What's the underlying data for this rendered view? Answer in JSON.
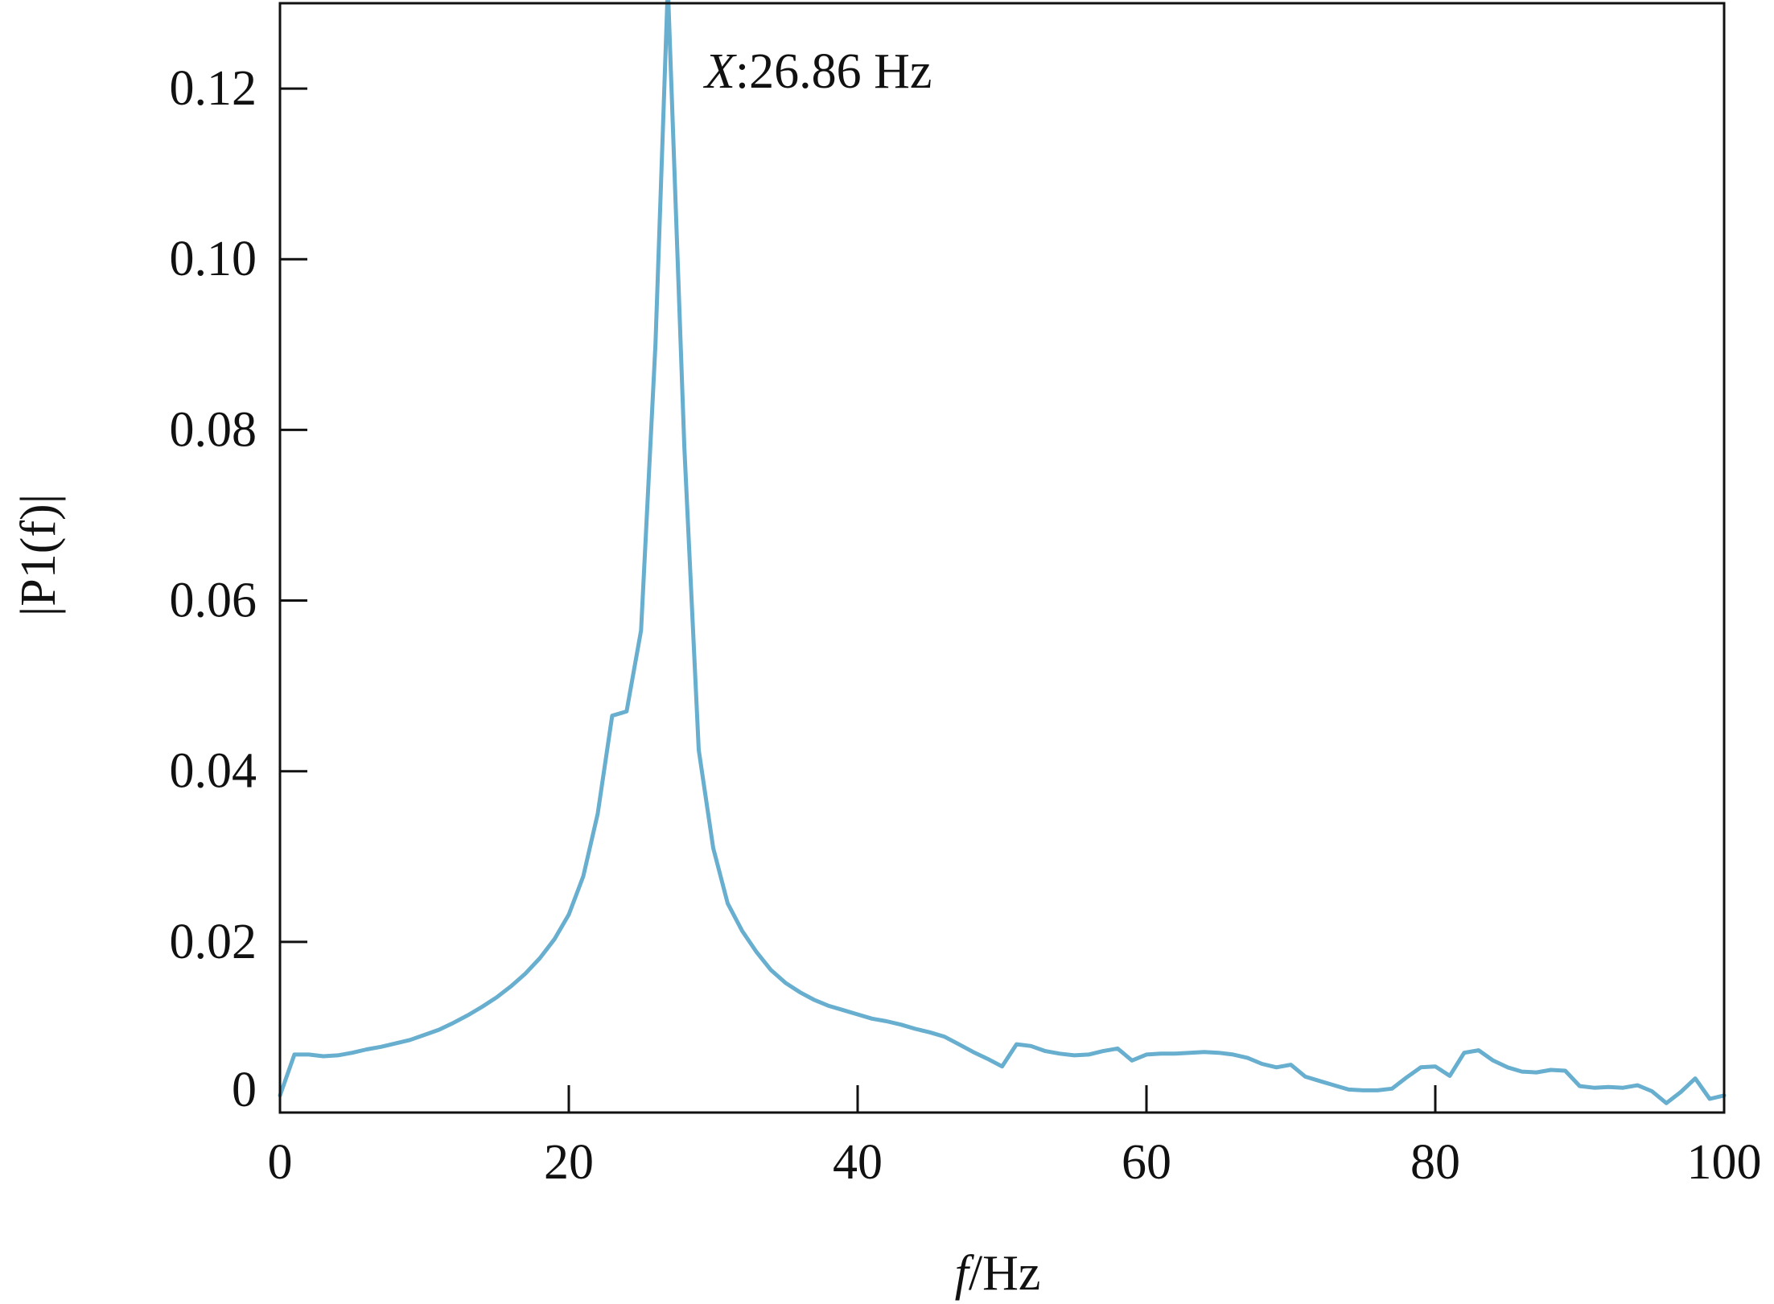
{
  "chart_data": {
    "type": "line",
    "title": "",
    "xlabel": "f/Hz",
    "xlabel_italic_part": "f",
    "xlabel_unit_part": "/Hz",
    "ylabel": "|P1(f)|",
    "xlim": [
      0,
      100
    ],
    "ylim": [
      0,
      0.13
    ],
    "xticks": [
      0,
      20,
      40,
      60,
      80,
      100
    ],
    "xtick_labels": [
      "0",
      "20",
      "40",
      "60",
      "80",
      "100"
    ],
    "yticks": [
      0,
      0.02,
      0.04,
      0.06,
      0.08,
      0.1,
      0.12
    ],
    "ytick_labels": [
      "0",
      "0.02",
      "0.04",
      "0.06",
      "0.08",
      "0.10",
      "0.12"
    ],
    "grid": false,
    "line_color": "#67aecf",
    "annotation": {
      "label_italic": "X",
      "label_rest": ":26.86 Hz",
      "x": 26.86
    },
    "series": [
      {
        "x": [
          0,
          1,
          2,
          3,
          4,
          5,
          6,
          7,
          8,
          9,
          10,
          11,
          12,
          13,
          14,
          15,
          16,
          17,
          18,
          19,
          20,
          21,
          22,
          23,
          24,
          25,
          26,
          26.86,
          28,
          29,
          30,
          31,
          32,
          33,
          34,
          35,
          36,
          37,
          38,
          39,
          40,
          41,
          42,
          43,
          44,
          45,
          46,
          47,
          48,
          49,
          50,
          51,
          52,
          53,
          54,
          55,
          56,
          57,
          58,
          59,
          60,
          61,
          62,
          63,
          64,
          65,
          66,
          67,
          68,
          69,
          70,
          71,
          72,
          73,
          74,
          75,
          76,
          77,
          78,
          79,
          80,
          81,
          82,
          83,
          84,
          85,
          86,
          87,
          88,
          89,
          90,
          91,
          92,
          93,
          94,
          95,
          96,
          97,
          98,
          99,
          100
        ],
        "y": [
          0.002,
          0.0068,
          0.0068,
          0.0066,
          0.0067,
          0.007,
          0.0074,
          0.0077,
          0.0081,
          0.0085,
          0.0091,
          0.0097,
          0.0105,
          0.0114,
          0.0124,
          0.0135,
          0.0148,
          0.0163,
          0.0181,
          0.0203,
          0.0232,
          0.0277,
          0.035,
          0.0465,
          0.047,
          0.0565,
          0.09,
          0.132,
          0.078,
          0.0425,
          0.031,
          0.0245,
          0.0213,
          0.0188,
          0.0167,
          0.0152,
          0.0141,
          0.0132,
          0.0125,
          0.012,
          0.0115,
          0.011,
          0.0107,
          0.0103,
          0.0098,
          0.0094,
          0.0089,
          0.008,
          0.0071,
          0.0063,
          0.0054,
          0.008,
          0.0078,
          0.0072,
          0.0069,
          0.0067,
          0.0068,
          0.0072,
          0.0075,
          0.0061,
          0.0068,
          0.0069,
          0.0069,
          0.007,
          0.0071,
          0.007,
          0.0068,
          0.0064,
          0.0057,
          0.0053,
          0.0056,
          0.0042,
          0.0037,
          0.0032,
          0.0027,
          0.0026,
          0.0026,
          0.0028,
          0.0041,
          0.0053,
          0.0054,
          0.0043,
          0.007,
          0.0073,
          0.0061,
          0.0053,
          0.0048,
          0.0047,
          0.005,
          0.0049,
          0.0031,
          0.0029,
          0.003,
          0.0029,
          0.0032,
          0.0025,
          0.0011,
          0.0024,
          0.004,
          0.0016,
          0.002
        ]
      }
    ]
  }
}
